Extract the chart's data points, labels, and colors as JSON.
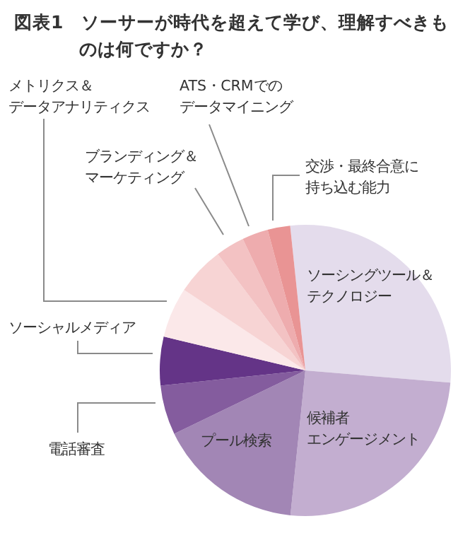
{
  "chart_data": {
    "type": "pie",
    "title": "図表1　ソーサーが時代を超えて学び、理解すべきものは何ですか？",
    "categories": [
      "ソーシングツール＆テクノロジー",
      "候補者エンゲージメント",
      "プール検索",
      "電話審査",
      "ソーシャルメディア",
      "メトリクス＆データアナリティクス",
      null,
      "ブランディング＆マーケティング",
      "ATS・CRMでのデータマイニング",
      "交渉・最終合意に持ち込む能力"
    ],
    "values": [
      28,
      25.3,
      16.2,
      5.5,
      5.4,
      5.6,
      5.4,
      3.2,
      2.9,
      2.5
    ],
    "colors": [
      "#e4dcec",
      "#c3aed0",
      "#a286b5",
      "#845c9e",
      "#643487",
      "#fbe8e9",
      "#f7d4d4",
      "#f3c2c3",
      "#eeacae",
      "#e99494"
    ],
    "legend": false
  }
}
